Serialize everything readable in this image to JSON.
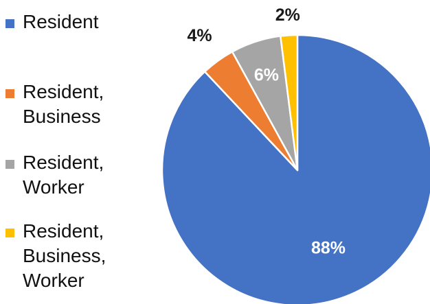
{
  "chart_data": {
    "type": "pie",
    "title": "",
    "legend_position": "left",
    "start_angle": "12 o'clock",
    "direction": "clockwise",
    "slices": [
      {
        "name": "Resident",
        "value": 88,
        "label": "88%",
        "color": "#4472C4",
        "label_color": "#FFFFFF"
      },
      {
        "name": "Resident,\nBusiness",
        "value": 4,
        "label": "4%",
        "color": "#ED7D31",
        "label_color": "#1A1A1A"
      },
      {
        "name": "Resident,\nWorker",
        "value": 6,
        "label": "6%",
        "color": "#A5A5A5",
        "label_color": "#FFFFFF"
      },
      {
        "name": "Resident,\nBusiness,\nWorker",
        "value": 2,
        "label": "2%",
        "color": "#FFC000",
        "label_color": "#1A1A1A"
      }
    ]
  }
}
